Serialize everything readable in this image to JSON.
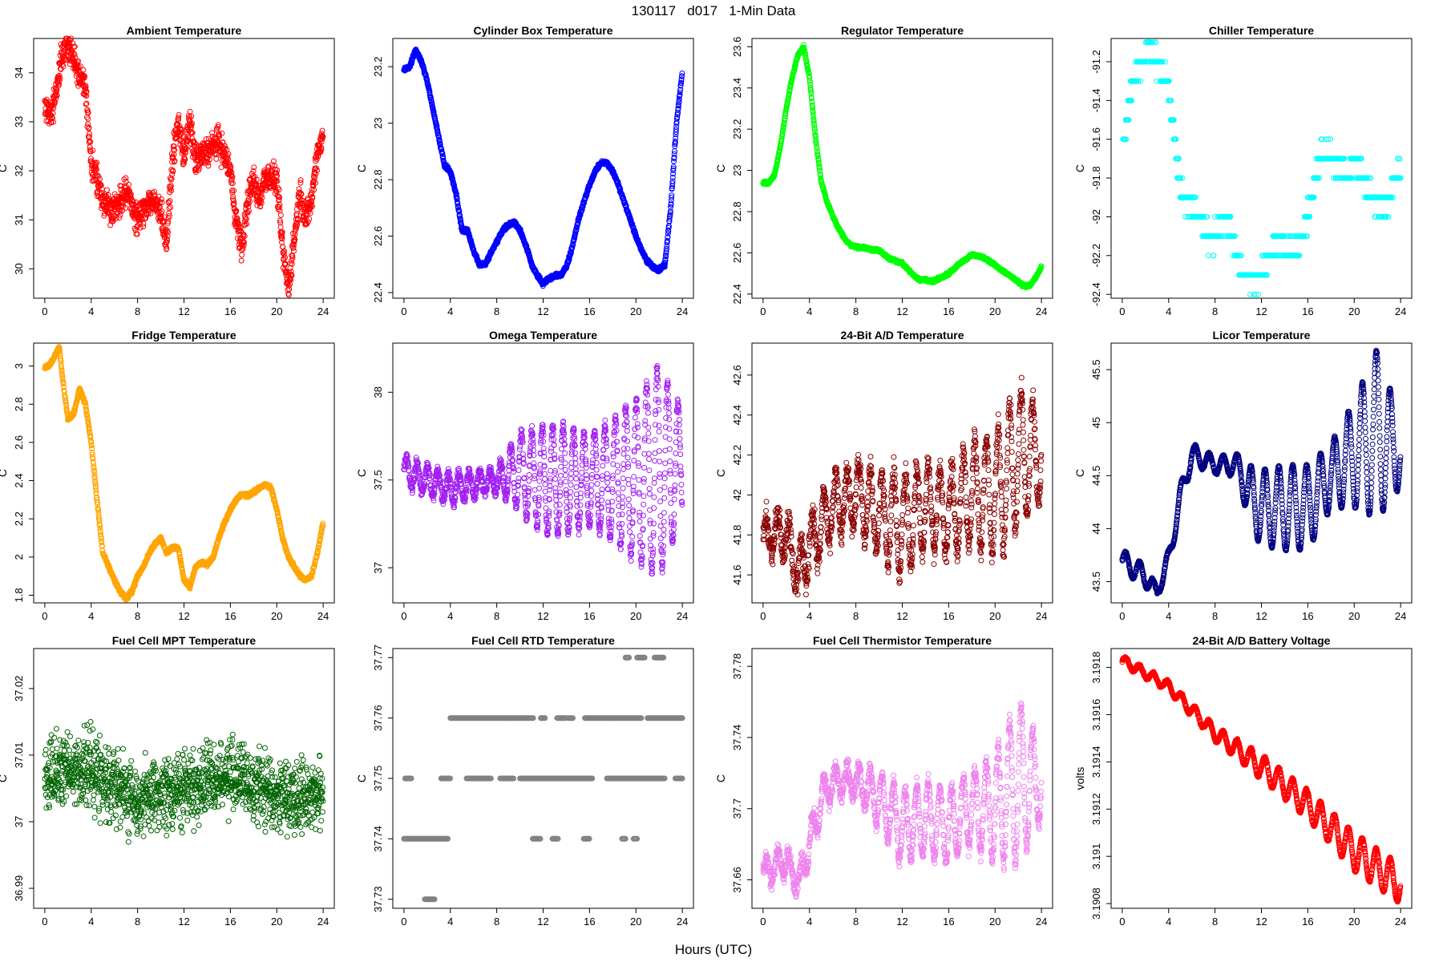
{
  "figure": {
    "title": "130117   d017   1-Min Data",
    "xlabel": "Hours (UTC)"
  },
  "chart_data": [
    {
      "type": "scatter",
      "title": "Ambient Temperature",
      "ylabel": "C",
      "color": "#ff0000",
      "xlim": [
        -0.96,
        24.96
      ],
      "ylim": [
        29.4,
        34.7
      ],
      "xticks": [
        0,
        4,
        8,
        12,
        16,
        20,
        24
      ],
      "yticks": [
        30,
        31,
        32,
        33,
        34
      ],
      "noise": 0.25,
      "mode": "smooth",
      "x": [
        0,
        0.5,
        1,
        1.5,
        2,
        2.5,
        3,
        3.5,
        4,
        4.5,
        5,
        6,
        7,
        8,
        9,
        10,
        10.5,
        11,
        11.5,
        12,
        12.5,
        13,
        14,
        15,
        16,
        16.5,
        17,
        17.5,
        18,
        18.5,
        19,
        20,
        20.5,
        21,
        21.5,
        22,
        22.5,
        23,
        23.5,
        24
      ],
      "y": [
        33.3,
        33.2,
        33.6,
        34.4,
        34.55,
        34.3,
        33.9,
        33.7,
        32.2,
        31.8,
        31.4,
        31.2,
        31.6,
        31.0,
        31.4,
        31.2,
        30.5,
        32.2,
        33.0,
        32.3,
        33.0,
        32.2,
        32.4,
        32.6,
        32.0,
        31.0,
        30.4,
        31.4,
        31.8,
        31.4,
        31.9,
        31.8,
        30.4,
        29.6,
        30.6,
        31.6,
        31.0,
        31.4,
        32.4,
        32.7
      ]
    },
    {
      "type": "scatter",
      "title": "Cylinder Box Temperature",
      "ylabel": "C",
      "color": "#0000ff",
      "xlim": [
        -0.96,
        24.96
      ],
      "ylim": [
        22.38,
        23.3
      ],
      "xticks": [
        0,
        4,
        8,
        12,
        16,
        20,
        24
      ],
      "yticks": [
        22.4,
        22.6,
        22.8,
        23.0,
        23.2
      ],
      "noise": 0.006,
      "mode": "smooth",
      "x": [
        0,
        0.5,
        1,
        1.5,
        2,
        2.5,
        3,
        3.5,
        4,
        4.5,
        5,
        5.5,
        6,
        6.5,
        7,
        7.5,
        8,
        8.5,
        9,
        9.5,
        10,
        10.5,
        11,
        11.5,
        12,
        12.5,
        13,
        13.5,
        14,
        14.5,
        15,
        15.5,
        16,
        16.5,
        17,
        17.5,
        18,
        18.5,
        19,
        19.5,
        20,
        20.5,
        21,
        21.5,
        22,
        22.5,
        23,
        23.5,
        24
      ],
      "y": [
        23.19,
        23.2,
        23.26,
        23.22,
        23.15,
        23.05,
        22.95,
        22.85,
        22.83,
        22.75,
        22.62,
        22.62,
        22.55,
        22.5,
        22.5,
        22.54,
        22.58,
        22.62,
        22.64,
        22.65,
        22.62,
        22.57,
        22.5,
        22.46,
        22.43,
        22.45,
        22.46,
        22.46,
        22.49,
        22.56,
        22.65,
        22.72,
        22.78,
        22.83,
        22.86,
        22.86,
        22.83,
        22.78,
        22.72,
        22.66,
        22.6,
        22.55,
        22.51,
        22.49,
        22.48,
        22.5,
        22.7,
        23.0,
        23.18
      ]
    },
    {
      "type": "scatter",
      "title": "Regulator Temperature",
      "ylabel": "C",
      "color": "#00ff00",
      "xlim": [
        -0.96,
        24.96
      ],
      "ylim": [
        22.38,
        23.64
      ],
      "xticks": [
        0,
        4,
        8,
        12,
        16,
        20,
        24
      ],
      "yticks": [
        22.4,
        22.6,
        22.8,
        23.0,
        23.2,
        23.4,
        23.6
      ],
      "noise": 0.006,
      "mode": "smooth",
      "x": [
        0,
        0.5,
        1,
        1.5,
        2,
        2.5,
        3,
        3.5,
        4,
        4.5,
        5,
        5.5,
        6,
        6.5,
        7,
        7.5,
        8,
        9,
        10,
        11,
        12,
        12.5,
        13,
        13.5,
        14,
        14.5,
        15,
        16,
        17,
        18,
        19,
        20,
        21,
        22,
        22.5,
        23,
        23.5,
        24
      ],
      "y": [
        22.94,
        22.94,
        22.98,
        23.12,
        23.3,
        23.45,
        23.56,
        23.6,
        23.45,
        23.17,
        22.95,
        22.85,
        22.78,
        22.72,
        22.67,
        22.64,
        22.63,
        22.62,
        22.61,
        22.57,
        22.55,
        22.52,
        22.49,
        22.47,
        22.47,
        22.46,
        22.47,
        22.5,
        22.55,
        22.59,
        22.58,
        22.54,
        22.5,
        22.46,
        22.44,
        22.44,
        22.48,
        22.53
      ]
    },
    {
      "type": "scatter",
      "title": "Chiller Temperature",
      "ylabel": "C",
      "color": "#00ffff",
      "xlim": [
        -0.96,
        24.96
      ],
      "ylim": [
        -92.42,
        -91.08
      ],
      "xticks": [
        0,
        4,
        8,
        12,
        16,
        20,
        24
      ],
      "yticks": [
        -92.4,
        -92.2,
        -92.0,
        -91.8,
        -91.6,
        -91.4,
        -91.2
      ],
      "noise": 0.05,
      "mode": "quant",
      "step": 0.1,
      "sparse": 0.6,
      "x": [
        0,
        0.5,
        1,
        1.5,
        2,
        2.5,
        3,
        3.5,
        4,
        4.5,
        5,
        5.5,
        6,
        6.5,
        7,
        7.5,
        8,
        8.5,
        9,
        9.5,
        10,
        10.5,
        11,
        11.5,
        12,
        12.5,
        13,
        13.5,
        14,
        14.5,
        15,
        15.5,
        16,
        16.5,
        17,
        17.5,
        18,
        18.5,
        19,
        19.5,
        20,
        20.5,
        21,
        21.5,
        22,
        22.5,
        23,
        23.5,
        24
      ],
      "y": [
        -91.65,
        -91.45,
        -91.3,
        -91.2,
        -91.15,
        -91.12,
        -91.2,
        -91.25,
        -91.35,
        -91.6,
        -91.85,
        -91.92,
        -91.94,
        -92.0,
        -92.05,
        -92.1,
        -92.12,
        -92.05,
        -92.0,
        -92.1,
        -92.25,
        -92.3,
        -92.3,
        -92.33,
        -92.3,
        -92.2,
        -92.15,
        -92.12,
        -92.15,
        -92.2,
        -92.15,
        -92.1,
        -92.0,
        -91.85,
        -91.7,
        -91.68,
        -91.7,
        -91.72,
        -91.76,
        -91.8,
        -91.7,
        -91.75,
        -91.85,
        -91.9,
        -91.92,
        -91.95,
        -91.9,
        -91.8,
        -91.75
      ]
    },
    {
      "type": "scatter",
      "title": "Fridge Temperature",
      "ylabel": "C",
      "color": "#ffa500",
      "xlim": [
        -0.96,
        24.96
      ],
      "ylim": [
        1.76,
        3.12
      ],
      "xticks": [
        0,
        4,
        8,
        12,
        16,
        20,
        24
      ],
      "yticks": [
        1.8,
        2.0,
        2.2,
        2.4,
        2.6,
        2.8,
        3.0
      ],
      "noise": 0.008,
      "mode": "smooth",
      "x": [
        0,
        0.5,
        1,
        1.25,
        1.5,
        2,
        2.5,
        3,
        3.5,
        4,
        4.5,
        5,
        5.5,
        6,
        6.5,
        7,
        7.5,
        8,
        8.5,
        9,
        9.5,
        10,
        10.5,
        11,
        11.5,
        12,
        12.5,
        13,
        13.5,
        14,
        14.5,
        15,
        15.5,
        16,
        16.5,
        17,
        17.5,
        18,
        18.5,
        19,
        19.5,
        20,
        20.5,
        21,
        21.5,
        22,
        22.5,
        23,
        23.5,
        24
      ],
      "y": [
        2.99,
        3.01,
        3.07,
        3.1,
        2.95,
        2.72,
        2.75,
        2.88,
        2.8,
        2.6,
        2.3,
        2.02,
        1.95,
        1.88,
        1.82,
        1.78,
        1.82,
        1.9,
        1.95,
        2.02,
        2.07,
        2.1,
        2.02,
        2.05,
        2.05,
        1.88,
        1.84,
        1.95,
        1.97,
        1.96,
        2.0,
        2.1,
        2.18,
        2.25,
        2.3,
        2.33,
        2.32,
        2.34,
        2.36,
        2.38,
        2.36,
        2.25,
        2.1,
        2.0,
        1.95,
        1.9,
        1.88,
        1.9,
        2.02,
        2.18
      ]
    },
    {
      "type": "scatter",
      "title": "Omega Temperature",
      "ylabel": "C",
      "color": "#a020f0",
      "xlim": [
        -0.96,
        24.96
      ],
      "ylim": [
        36.8,
        38.28
      ],
      "xticks": [
        0,
        4,
        8,
        12,
        16,
        20,
        24
      ],
      "yticks": [
        37.0,
        37.5,
        38.0
      ],
      "noise": 0.03,
      "mode": "osc",
      "x": [
        0,
        4,
        8,
        10,
        12,
        14,
        16,
        18,
        20,
        22,
        24
      ],
      "y": [
        37.55,
        37.45,
        37.5,
        37.55,
        37.5,
        37.5,
        37.5,
        37.5,
        37.5,
        37.55,
        37.6
      ],
      "amp": [
        0.08,
        0.08,
        0.06,
        0.22,
        0.3,
        0.3,
        0.25,
        0.35,
        0.45,
        0.6,
        0.3
      ],
      "period": 0.9
    },
    {
      "type": "scatter",
      "title": "24-Bit A/D Temperature",
      "ylabel": "C",
      "color": "#8b0000",
      "xlim": [
        -0.96,
        24.96
      ],
      "ylim": [
        41.46,
        42.76
      ],
      "xticks": [
        0,
        4,
        8,
        12,
        16,
        20,
        24
      ],
      "yticks": [
        41.6,
        41.8,
        42.0,
        42.2,
        42.4,
        42.6
      ],
      "noise": 0.06,
      "mode": "osc",
      "x": [
        0,
        2,
        3,
        4,
        6,
        8,
        10,
        12,
        14,
        16,
        18,
        20,
        22,
        24
      ],
      "y": [
        41.8,
        41.8,
        41.6,
        41.75,
        41.95,
        42.0,
        41.9,
        41.85,
        41.95,
        41.9,
        42.0,
        42.0,
        42.2,
        42.2
      ],
      "amp": [
        0.08,
        0.1,
        0.1,
        0.15,
        0.15,
        0.15,
        0.2,
        0.25,
        0.2,
        0.2,
        0.25,
        0.3,
        0.35,
        0.2
      ],
      "period": 1.0
    },
    {
      "type": "scatter",
      "title": "Licor Temperature",
      "ylabel": "C",
      "color": "#000080",
      "xlim": [
        -0.96,
        24.96
      ],
      "ylim": [
        43.3,
        45.75
      ],
      "xticks": [
        0,
        4,
        8,
        12,
        16,
        20,
        24
      ],
      "yticks": [
        43.5,
        44.0,
        44.5,
        45.0,
        45.5
      ],
      "noise": 0.01,
      "mode": "osc",
      "x": [
        0,
        2,
        3,
        4,
        5,
        6,
        8,
        10,
        11,
        12,
        14,
        16,
        18,
        20,
        22,
        24
      ],
      "y": [
        43.7,
        43.55,
        43.4,
        43.7,
        44.3,
        44.7,
        44.6,
        44.6,
        44.3,
        44.2,
        44.2,
        44.2,
        44.5,
        44.7,
        44.9,
        44.7
      ],
      "amp": [
        0.1,
        0.1,
        0.05,
        0.1,
        0.1,
        0.1,
        0.08,
        0.1,
        0.3,
        0.35,
        0.4,
        0.4,
        0.3,
        0.5,
        0.8,
        0.3
      ],
      "period": 1.2
    },
    {
      "type": "scatter",
      "title": "Fuel Cell MPT Temperature",
      "ylabel": "C",
      "color": "#006400",
      "xlim": [
        -0.96,
        24.96
      ],
      "ylim": [
        36.987,
        37.026
      ],
      "xticks": [
        0,
        4,
        8,
        12,
        16,
        20,
        24
      ],
      "yticks": [
        36.99,
        37.0,
        37.01,
        37.02
      ],
      "noise": 0.0045,
      "mode": "scatter",
      "x": [
        0,
        4,
        8,
        12,
        16,
        20,
        24
      ],
      "y": [
        37.007,
        37.008,
        37.003,
        37.005,
        37.007,
        37.004,
        37.004
      ]
    },
    {
      "type": "scatter",
      "title": "Fuel Cell RTD Temperature",
      "ylabel": "C",
      "color": "#808080",
      "xlim": [
        -0.96,
        24.96
      ],
      "ylim": [
        37.7285,
        37.7715
      ],
      "xticks": [
        0,
        4,
        8,
        12,
        16,
        20,
        24
      ],
      "yticks": [
        37.73,
        37.74,
        37.75,
        37.76,
        37.77
      ],
      "noise": 0,
      "mode": "levels",
      "segments": [
        [
          0,
          3.8,
          37.74
        ],
        [
          1.8,
          2.7,
          37.73
        ],
        [
          0.1,
          0.7,
          37.75
        ],
        [
          3.2,
          4.0,
          37.75
        ],
        [
          4.0,
          11.2,
          37.76
        ],
        [
          11.8,
          12.2,
          37.76
        ],
        [
          13.2,
          14.0,
          37.76
        ],
        [
          14.2,
          14.6,
          37.76
        ],
        [
          15.6,
          16.4,
          37.76
        ],
        [
          16.5,
          20.5,
          37.76
        ],
        [
          21.0,
          24.0,
          37.76
        ],
        [
          3.4,
          3.6,
          37.75
        ],
        [
          5.4,
          7.5,
          37.75
        ],
        [
          8.3,
          9.5,
          37.75
        ],
        [
          10.0,
          16.3,
          37.75
        ],
        [
          17.5,
          22.5,
          37.75
        ],
        [
          23.4,
          24.0,
          37.75
        ],
        [
          11.1,
          11.8,
          37.74
        ],
        [
          12.8,
          13.3,
          37.74
        ],
        [
          15.5,
          16.0,
          37.74
        ],
        [
          18.8,
          19.1,
          37.74
        ],
        [
          19.8,
          20.1,
          37.74
        ],
        [
          19.1,
          19.4,
          37.77
        ],
        [
          20.1,
          20.8,
          37.77
        ],
        [
          21.6,
          22.4,
          37.77
        ]
      ]
    },
    {
      "type": "scatter",
      "title": "Fuel Cell Thermistor Temperature",
      "ylabel": "C",
      "color": "#ee82ee",
      "xlim": [
        -0.96,
        24.96
      ],
      "ylim": [
        37.644,
        37.79
      ],
      "xticks": [
        0,
        4,
        8,
        12,
        16,
        20,
        24
      ],
      "yticks": [
        37.66,
        37.7,
        37.74,
        37.78
      ],
      "noise": 0.004,
      "mode": "osc",
      "x": [
        0,
        2,
        3,
        4,
        5,
        6,
        8,
        10,
        12,
        14,
        16,
        18,
        20,
        22,
        24
      ],
      "y": [
        37.665,
        37.67,
        37.658,
        37.68,
        37.705,
        37.715,
        37.715,
        37.705,
        37.69,
        37.695,
        37.69,
        37.7,
        37.7,
        37.715,
        37.715
      ],
      "amp": [
        0.006,
        0.008,
        0.005,
        0.01,
        0.01,
        0.008,
        0.008,
        0.015,
        0.02,
        0.02,
        0.02,
        0.02,
        0.03,
        0.045,
        0.02
      ],
      "period": 1.0
    },
    {
      "type": "scatter",
      "title": "24-Bit A/D Battery Voltage",
      "ylabel": "volts",
      "color": "#ff0000",
      "xlim": [
        -0.96,
        24.96
      ],
      "ylim": [
        3.19078,
        3.19188
      ],
      "xticks": [
        0,
        4,
        8,
        12,
        16,
        20,
        24
      ],
      "yticks": [
        3.1908,
        3.191,
        3.1912,
        3.1914,
        3.1916,
        3.1918
      ],
      "noise": 5e-06,
      "mode": "osc",
      "x": [
        0,
        4,
        8,
        12,
        16,
        20,
        24
      ],
      "y": [
        3.19183,
        3.19172,
        3.19152,
        3.19138,
        3.19122,
        3.19102,
        3.19088
      ],
      "amp": [
        2e-05,
        2e-05,
        3e-05,
        5e-05,
        6e-05,
        8e-05,
        8e-05
      ],
      "period": 1.2
    }
  ]
}
